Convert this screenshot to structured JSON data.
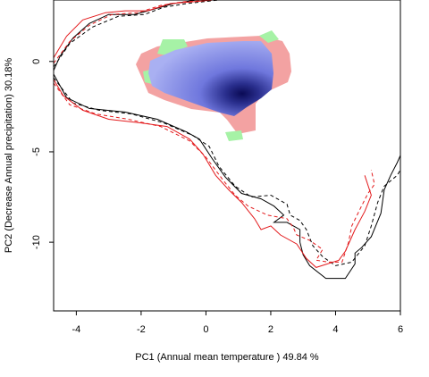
{
  "chart_data": {
    "type": "scatter",
    "title": "",
    "xlabel": "PC1 (Annual mean temperature ) 49.84 %",
    "ylabel": "PC2 (Decrease Annual precipitation) 30.18%",
    "xlim": [
      -4.7,
      6.0
    ],
    "ylim": [
      -13.8,
      3.4
    ],
    "xticks": [
      -4,
      -2,
      0,
      2,
      4,
      6
    ],
    "yticks": [
      0,
      -5,
      -10
    ],
    "grid": false,
    "legend": "none",
    "colors": {
      "density_high": "#0a0a55",
      "density_mid": "#6f77dd",
      "density_low": "#a9b0f2",
      "region_red": "#f3a2a2",
      "region_green": "#a6f2a6",
      "contour_black": "#000000",
      "contour_red": "#e31a1c"
    },
    "density_peak": {
      "x": 1.1,
      "y": -1.2
    },
    "series": [
      {
        "style": "black-solid",
        "points": [
          [
            -4.7,
            -0.5
          ],
          [
            -4.5,
            0.3
          ],
          [
            -4.1,
            1.3
          ],
          [
            -3.6,
            2.1
          ],
          [
            -3.0,
            2.6
          ],
          [
            -2.2,
            2.6
          ],
          [
            -1.6,
            2.9
          ],
          [
            -1.0,
            3.2
          ],
          [
            -0.3,
            3.4
          ],
          [
            0.5,
            3.4
          ]
        ]
      },
      {
        "style": "black-solid",
        "points": [
          [
            -4.7,
            -0.7
          ],
          [
            -4.3,
            -2.0
          ],
          [
            -3.6,
            -2.6
          ],
          [
            -2.5,
            -2.8
          ],
          [
            -1.5,
            -3.2
          ],
          [
            -0.6,
            -3.9
          ],
          [
            -0.2,
            -4.3
          ],
          [
            0.2,
            -5.4
          ],
          [
            0.6,
            -6.4
          ],
          [
            1.1,
            -7.3
          ],
          [
            1.7,
            -7.6
          ],
          [
            2.1,
            -8.0
          ],
          [
            2.4,
            -8.5
          ],
          [
            2.1,
            -8.9
          ],
          [
            2.5,
            -8.9
          ],
          [
            2.9,
            -9.3
          ],
          [
            2.9,
            -10.0
          ],
          [
            3.0,
            -10.7
          ],
          [
            3.2,
            -11.3
          ],
          [
            3.7,
            -12.0
          ],
          [
            4.3,
            -12.0
          ],
          [
            4.6,
            -11.2
          ],
          [
            4.6,
            -10.6
          ],
          [
            4.8,
            -10.3
          ],
          [
            5.1,
            -9.7
          ],
          [
            5.4,
            -8.4
          ],
          [
            5.5,
            -7.1
          ],
          [
            5.7,
            -6.3
          ],
          [
            5.9,
            -5.6
          ],
          [
            6.0,
            -5.2
          ]
        ]
      },
      {
        "style": "black-dashed",
        "points": [
          [
            -4.7,
            -0.3
          ],
          [
            -4.2,
            1.0
          ],
          [
            -3.5,
            1.9
          ],
          [
            -2.7,
            2.5
          ],
          [
            -1.9,
            2.6
          ],
          [
            -1.3,
            3.0
          ],
          [
            -0.6,
            3.2
          ],
          [
            0.4,
            3.4
          ]
        ]
      },
      {
        "style": "black-dashed",
        "points": [
          [
            -4.7,
            -0.9
          ],
          [
            -4.1,
            -2.3
          ],
          [
            -3.3,
            -2.7
          ],
          [
            -2.3,
            -2.9
          ],
          [
            -1.3,
            -3.4
          ],
          [
            -0.4,
            -4.1
          ],
          [
            0.1,
            -4.7
          ],
          [
            0.4,
            -5.8
          ],
          [
            0.9,
            -6.9
          ],
          [
            1.4,
            -7.5
          ],
          [
            2.0,
            -7.4
          ],
          [
            2.5,
            -7.9
          ],
          [
            2.6,
            -8.5
          ],
          [
            2.9,
            -8.8
          ],
          [
            3.1,
            -9.3
          ],
          [
            3.3,
            -10.2
          ],
          [
            3.6,
            -10.8
          ],
          [
            4.0,
            -11.3
          ],
          [
            4.5,
            -11.1
          ],
          [
            4.9,
            -10.2
          ],
          [
            5.1,
            -9.1
          ],
          [
            5.3,
            -7.8
          ],
          [
            5.5,
            -6.9
          ],
          [
            5.9,
            -6.3
          ],
          [
            6.0,
            -6.0
          ]
        ]
      },
      {
        "style": "red-solid",
        "points": [
          [
            -4.7,
            0.2
          ],
          [
            -4.3,
            1.4
          ],
          [
            -3.8,
            2.3
          ],
          [
            -3.1,
            2.7
          ],
          [
            -2.5,
            2.8
          ],
          [
            -1.8,
            2.8
          ],
          [
            -1.1,
            3.2
          ],
          [
            -0.4,
            3.3
          ],
          [
            0.2,
            3.4
          ]
        ]
      },
      {
        "style": "red-solid",
        "points": [
          [
            -4.7,
            -1.0
          ],
          [
            -4.4,
            -1.9
          ],
          [
            -3.8,
            -2.7
          ],
          [
            -3.0,
            -3.2
          ],
          [
            -2.0,
            -3.4
          ],
          [
            -1.2,
            -3.6
          ],
          [
            -0.5,
            -4.3
          ],
          [
            -0.1,
            -5.1
          ],
          [
            0.3,
            -6.3
          ],
          [
            0.7,
            -7.1
          ],
          [
            1.1,
            -7.8
          ],
          [
            1.5,
            -8.7
          ],
          [
            1.7,
            -9.3
          ],
          [
            2.0,
            -9.1
          ],
          [
            2.3,
            -9.6
          ],
          [
            2.8,
            -10.1
          ],
          [
            3.1,
            -10.9
          ],
          [
            3.4,
            -11.4
          ],
          [
            4.1,
            -11.0
          ],
          [
            4.3,
            -10.5
          ],
          [
            4.6,
            -9.3
          ],
          [
            4.9,
            -8.3
          ],
          [
            5.1,
            -7.4
          ],
          [
            4.9,
            -6.3
          ]
        ]
      },
      {
        "style": "red-dashed",
        "points": [
          [
            -4.7,
            -0.1
          ],
          [
            -4.2,
            1.1
          ],
          [
            -3.6,
            2.0
          ],
          [
            -2.9,
            2.6
          ],
          [
            -2.1,
            2.7
          ],
          [
            -1.4,
            3.1
          ],
          [
            -0.7,
            3.3
          ],
          [
            0.3,
            3.4
          ]
        ]
      },
      {
        "style": "red-dashed",
        "points": [
          [
            -4.7,
            -1.2
          ],
          [
            -4.2,
            -2.4
          ],
          [
            -3.4,
            -2.9
          ],
          [
            -2.4,
            -3.2
          ],
          [
            -1.4,
            -3.6
          ],
          [
            -0.5,
            -4.4
          ],
          [
            0.0,
            -5.3
          ],
          [
            0.5,
            -6.5
          ],
          [
            0.9,
            -7.4
          ],
          [
            1.3,
            -8.0
          ],
          [
            1.9,
            -8.5
          ],
          [
            2.5,
            -8.7
          ],
          [
            2.7,
            -9.2
          ],
          [
            2.8,
            -9.6
          ],
          [
            3.2,
            -9.9
          ],
          [
            3.6,
            -10.4
          ],
          [
            3.4,
            -11.0
          ],
          [
            3.8,
            -11.1
          ],
          [
            4.2,
            -11.1
          ],
          [
            4.4,
            -10.0
          ],
          [
            4.5,
            -9.1
          ],
          [
            4.8,
            -8.0
          ],
          [
            5.0,
            -7.3
          ],
          [
            5.2,
            -6.8
          ],
          [
            5.1,
            -6.0
          ]
        ]
      }
    ]
  }
}
